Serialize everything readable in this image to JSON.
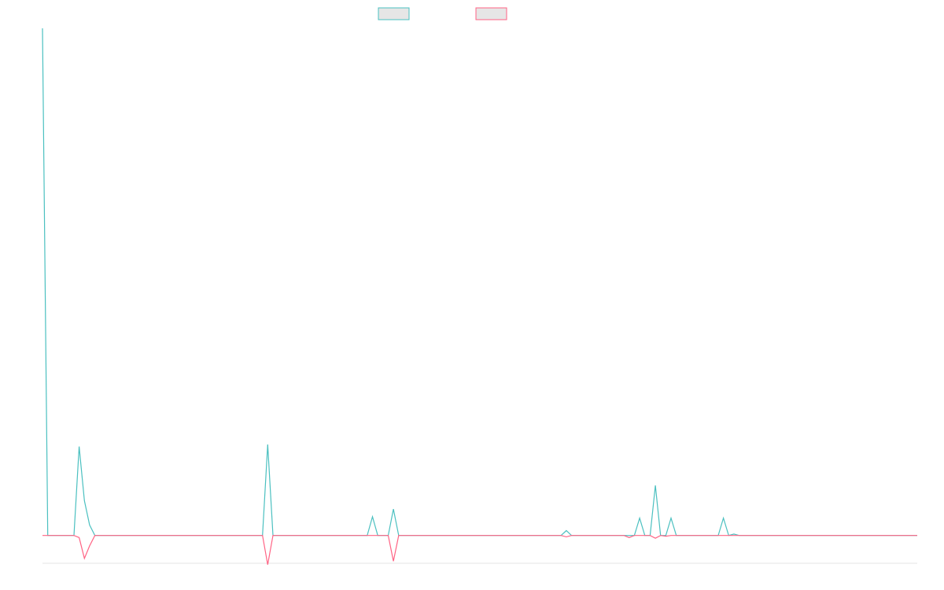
{
  "chart_data": {
    "type": "line",
    "title": "",
    "xlabel": "",
    "ylabel": "",
    "grid": false,
    "legend_position": "top-center",
    "n_points": 168,
    "ylim": [
      -40,
      730
    ],
    "series": [
      {
        "color": "#4bc0c0",
        "fill": "#e6e6e6",
        "points": [
          [
            0,
            730
          ],
          [
            1,
            0
          ],
          [
            6,
            0
          ],
          [
            7,
            128
          ],
          [
            8,
            50
          ],
          [
            9,
            15
          ],
          [
            10,
            0
          ],
          [
            42,
            0
          ],
          [
            43,
            131
          ],
          [
            44,
            0
          ],
          [
            62,
            0
          ],
          [
            63,
            27
          ],
          [
            64,
            0
          ],
          [
            66,
            0
          ],
          [
            67,
            38
          ],
          [
            68,
            0
          ],
          [
            99,
            0
          ],
          [
            100,
            7
          ],
          [
            101,
            0
          ],
          [
            113,
            0
          ],
          [
            114,
            25
          ],
          [
            115,
            0
          ],
          [
            116,
            0
          ],
          [
            117,
            72
          ],
          [
            118,
            0
          ],
          [
            119,
            0
          ],
          [
            120,
            25
          ],
          [
            121,
            0
          ],
          [
            129,
            0
          ],
          [
            130,
            25
          ],
          [
            131,
            0
          ],
          [
            132,
            2
          ],
          [
            133,
            0
          ],
          [
            167,
            0
          ]
        ]
      },
      {
        "color": "#ff6384",
        "fill": "#e6e6e6",
        "points": [
          [
            0,
            0
          ],
          [
            6,
            0
          ],
          [
            7,
            -3
          ],
          [
            8,
            -33
          ],
          [
            9,
            -15
          ],
          [
            10,
            0
          ],
          [
            42,
            0
          ],
          [
            43,
            -42
          ],
          [
            44,
            0
          ],
          [
            66,
            0
          ],
          [
            67,
            -37
          ],
          [
            68,
            0
          ],
          [
            99,
            0
          ],
          [
            100,
            -2
          ],
          [
            101,
            0
          ],
          [
            111,
            0
          ],
          [
            112,
            -3
          ],
          [
            113,
            0
          ],
          [
            116,
            0
          ],
          [
            117,
            -4
          ],
          [
            118,
            0
          ],
          [
            119,
            -1
          ],
          [
            120,
            0
          ],
          [
            167,
            0
          ]
        ]
      }
    ]
  }
}
